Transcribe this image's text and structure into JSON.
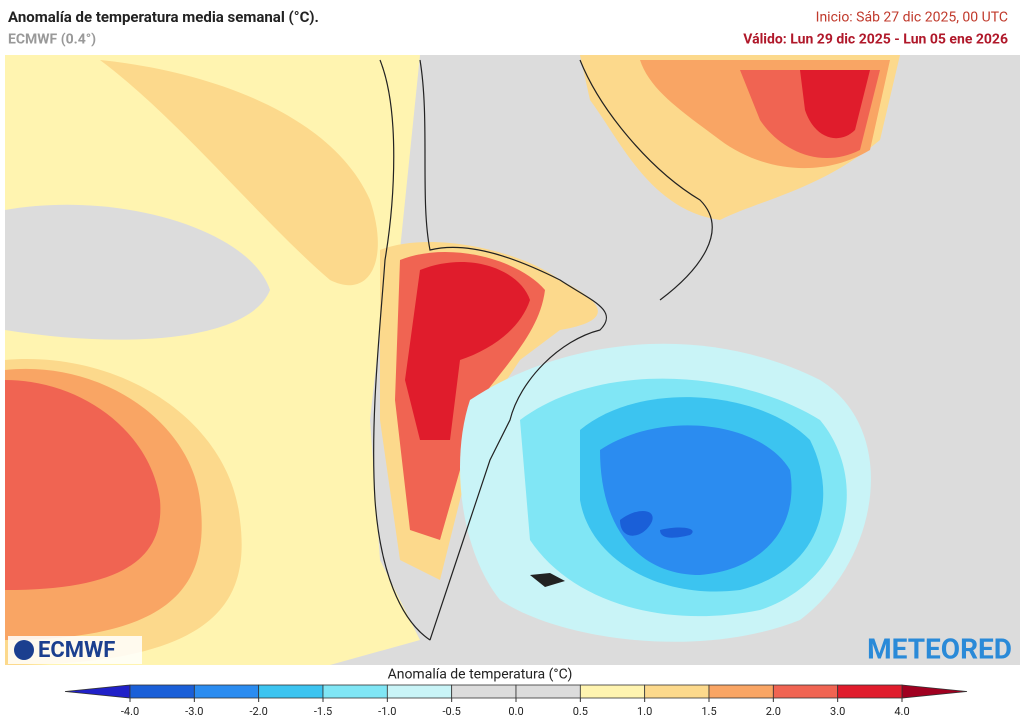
{
  "header": {
    "title": "Anomalía de temperatura media semanal (°C).",
    "subtitle": "ECMWF (0.4°)",
    "init": "Inicio: Sáb 27 dic 2025, 00 UTC",
    "valid": "Válido: Lun 29 dic 2025 - Lun 05 ene 2026"
  },
  "logos": {
    "left": "ECMWF",
    "right": "METEORED"
  },
  "colorbar": {
    "title": "Anomalía de temperatura (°C)",
    "ticks": [
      {
        "value": -4,
        "label": "-4.0"
      },
      {
        "value": -3,
        "label": "-3.0"
      },
      {
        "value": -2,
        "label": "-2.0"
      },
      {
        "value": -1.5,
        "label": "-1.5"
      },
      {
        "value": -1,
        "label": "-1.0"
      },
      {
        "value": -0.5,
        "label": "-0.5"
      },
      {
        "value": 0,
        "label": "0.0"
      },
      {
        "value": 0.5,
        "label": "0.5"
      },
      {
        "value": 1,
        "label": "1.0"
      },
      {
        "value": 1.5,
        "label": "1.5"
      },
      {
        "value": 2,
        "label": "2.0"
      },
      {
        "value": 3,
        "label": "3.0"
      },
      {
        "value": 4,
        "label": "4.0"
      }
    ],
    "colors": [
      "#1a5fd8",
      "#2b8cf0",
      "#3cc4f0",
      "#80e6f5",
      "#c9f4f7",
      "#dcdcdc",
      "#dcdcdc",
      "#fff4b0",
      "#fcd98c",
      "#f9a564",
      "#f06452",
      "#e01c2c"
    ],
    "under_color": "#2020c8",
    "over_color": "#a00020"
  }
}
